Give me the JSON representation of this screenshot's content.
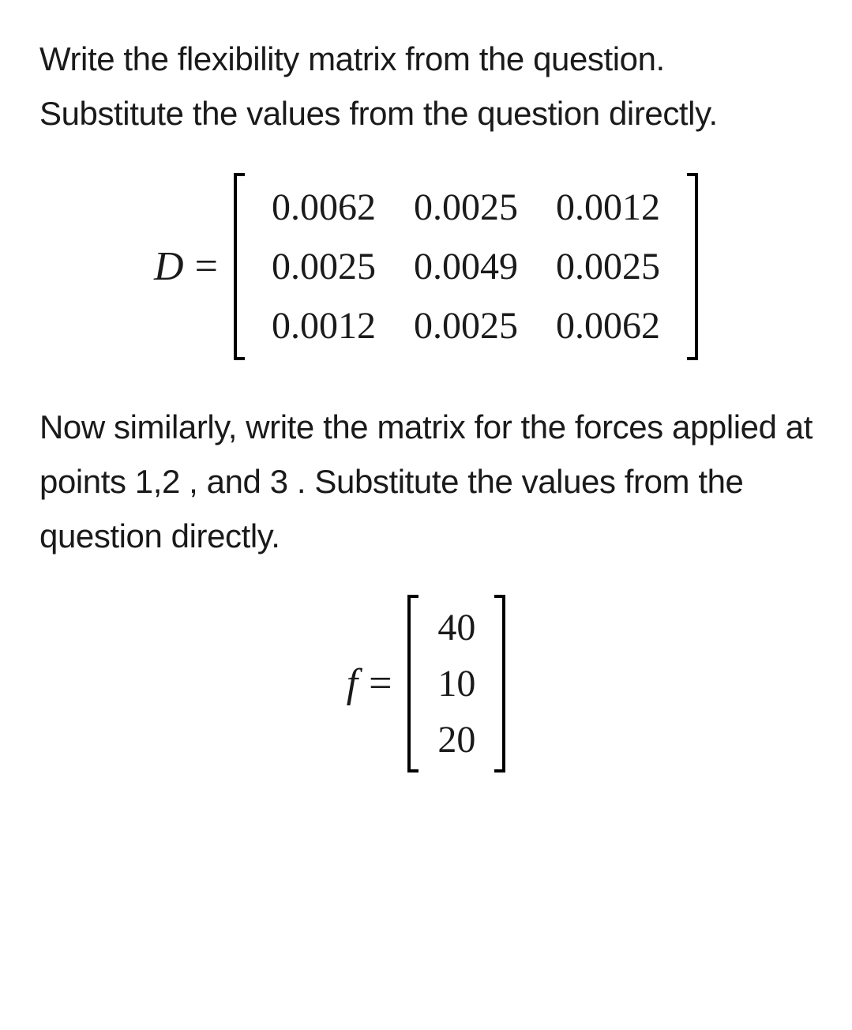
{
  "para1": "Write the flexibility matrix from the question. Substitute the values from the question directly.",
  "para2": "Now similarly, write the matrix for the forces applied at points 1,2 , and 3 . Substitute the values from the question directly.",
  "eq1": {
    "var": "D",
    "equals": "=",
    "rows": [
      [
        "0.0062",
        "0.0025",
        "0.0012"
      ],
      [
        "0.0025",
        "0.0049",
        "0.0025"
      ],
      [
        "0.0012",
        "0.0025",
        "0.0062"
      ]
    ]
  },
  "eq2": {
    "var": "f",
    "equals": "=",
    "rows": [
      [
        "40"
      ],
      [
        "10"
      ],
      [
        "20"
      ]
    ]
  },
  "colors": {
    "text": "#1a1a1a",
    "background": "#ffffff",
    "bracket": "#000000"
  },
  "typography": {
    "body_fontsize": 42,
    "math_var_fontsize": 52,
    "matrix_cell_fontsize": 48
  }
}
